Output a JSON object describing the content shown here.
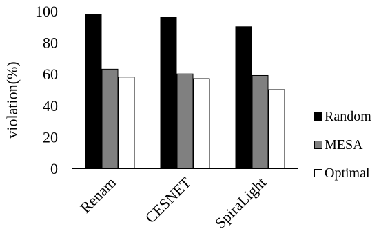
{
  "chart_data": {
    "type": "bar",
    "title": "",
    "xlabel": "",
    "ylabel": "violation(%)",
    "ylim": [
      0,
      100
    ],
    "yticks": [
      0,
      20,
      40,
      60,
      80,
      100
    ],
    "categories": [
      "Renam",
      "CESNET",
      "SpiraLight"
    ],
    "series": [
      {
        "name": "Random",
        "values": [
          98,
          96,
          90
        ],
        "color": "#000000"
      },
      {
        "name": "MESA",
        "values": [
          63,
          60,
          59
        ],
        "color": "#808080"
      },
      {
        "name": "Optimal",
        "values": [
          58,
          57,
          50
        ],
        "color": "#ffffff"
      }
    ],
    "grid": false,
    "legend_position": "right"
  }
}
